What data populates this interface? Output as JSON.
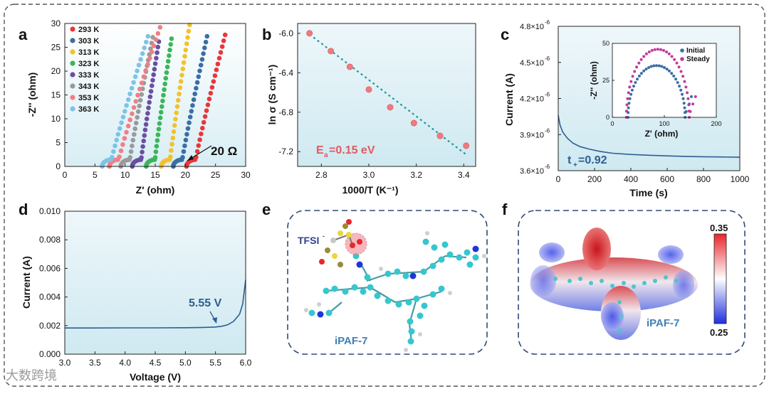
{
  "figure": {
    "panel_letters": [
      "a",
      "b",
      "c",
      "d",
      "e",
      "f"
    ],
    "watermark": "大数跨境"
  },
  "chart_data": [
    {
      "panel": "a",
      "type": "scatter",
      "xlabel": "Z' (ohm)",
      "ylabel": "-Z'' (ohm)",
      "xlim": [
        0,
        30
      ],
      "ylim": [
        0,
        30
      ],
      "xticks": [
        "0",
        "5",
        "10",
        "15",
        "20",
        "25",
        "30"
      ],
      "yticks": [
        "0",
        "5",
        "10",
        "15",
        "20",
        "25",
        "30"
      ],
      "annotation": "20 Ω",
      "series": [
        {
          "name": "293 K",
          "color": "#e8373b",
          "r": 20.2,
          "top": 27.6,
          "xtop": 26.6
        },
        {
          "name": "303 K",
          "color": "#3a6ea5",
          "r": 18.0,
          "top": 27.3,
          "xtop": 23.6
        },
        {
          "name": "313 K",
          "color": "#f2c12e",
          "r": 16.0,
          "top": 29.7,
          "xtop": 20.7
        },
        {
          "name": "323 K",
          "color": "#3cb55a",
          "r": 13.5,
          "top": 26.8,
          "xtop": 17.7
        },
        {
          "name": "333 K",
          "color": "#6b4fa0",
          "r": 11.2,
          "top": 26.2,
          "xtop": 15.6
        },
        {
          "name": "343 K",
          "color": "#9a9a9a",
          "r": 9.3,
          "top": 27.1,
          "xtop": 14.6
        },
        {
          "name": "353 K",
          "color": "#f07f86",
          "r": 7.4,
          "top": 29.2,
          "xtop": 15.8
        },
        {
          "name": "363 K",
          "color": "#7ec3e6",
          "r": 6.2,
          "top": 27.3,
          "xtop": 13.8
        }
      ]
    },
    {
      "panel": "b",
      "type": "scatter",
      "xlabel": "1000/T (K⁻¹)",
      "ylabel": "ln σ (S cm⁻¹)",
      "xlim": [
        2.7,
        3.45
      ],
      "ylim": [
        -7.35,
        -5.9
      ],
      "xticks": [
        "2.8",
        "3.0",
        "3.2",
        "3.4"
      ],
      "yticks": [
        "-6.0",
        "-6.4",
        "-6.8",
        "-7.2"
      ],
      "x": [
        2.75,
        2.84,
        2.92,
        3.0,
        3.09,
        3.19,
        3.3,
        3.41
      ],
      "y": [
        -6.0,
        -6.18,
        -6.34,
        -6.57,
        -6.75,
        -6.91,
        -7.04,
        -7.14
      ],
      "fit": {
        "x": [
          2.75,
          3.41
        ],
        "y": [
          -6.01,
          -7.23
        ]
      },
      "annotation": "Ea=0.15 eV",
      "annotation_main": "E",
      "annotation_sub": "a",
      "annotation_rest": "=0.15 eV"
    },
    {
      "panel": "c",
      "type": "line",
      "xlabel": "Time (s)",
      "ylabel": "Current (A)",
      "xlim": [
        0,
        1000
      ],
      "ylim": [
        3.6,
        4.8
      ],
      "xticks": [
        "0",
        "200",
        "400",
        "600",
        "800",
        "1000"
      ],
      "yticks": [
        {
          "v": 3.6,
          "base": "3.6×10",
          "exp": "-6"
        },
        {
          "v": 3.9,
          "base": "3.9×10",
          "exp": "-6"
        },
        {
          "v": 4.2,
          "base": "4.2×10",
          "exp": "-6"
        },
        {
          "v": 4.5,
          "base": "4.5×10",
          "exp": "-6"
        },
        {
          "v": 4.8,
          "base": "4.8×10",
          "exp": "-6"
        }
      ],
      "x": [
        0,
        10,
        25,
        50,
        80,
        120,
        170,
        230,
        300,
        400,
        500,
        600,
        700,
        800,
        900,
        1000
      ],
      "y": [
        4.06,
        3.98,
        3.92,
        3.87,
        3.83,
        3.8,
        3.78,
        3.76,
        3.745,
        3.735,
        3.728,
        3.723,
        3.719,
        3.716,
        3.714,
        3.712
      ],
      "annotation": "t+=0.92",
      "annotation_main": "t",
      "annotation_sub": "+",
      "annotation_rest": "=0.92",
      "inset": {
        "type": "scatter",
        "xlabel": "Z' (ohm)",
        "ylabel": "-Z'' (ohm)",
        "xlim": [
          0,
          200
        ],
        "ylim": [
          0,
          50
        ],
        "xticks": [
          "0",
          "100",
          "200"
        ],
        "yticks": [
          "0",
          "25",
          "50"
        ],
        "series": [
          {
            "name": "Initial",
            "color": "#3a6ea5",
            "x0": 30,
            "x1": 140,
            "peak": 35,
            "tail": [
              [
                142,
                4
              ],
              [
                148,
                9
              ],
              [
                152,
                14
              ]
            ]
          },
          {
            "name": "Steady",
            "color": "#c23a9c",
            "x0": 27,
            "x1": 148,
            "peak": 46,
            "tail": [
              [
                150,
                4
              ],
              [
                155,
                9
              ],
              [
                160,
                14
              ]
            ]
          }
        ]
      }
    },
    {
      "panel": "d",
      "type": "line",
      "xlabel": "Voltage (V)",
      "ylabel": "Current (A)",
      "xlim": [
        3.0,
        6.0
      ],
      "ylim": [
        0,
        0.01
      ],
      "xticks": [
        "3.0",
        "3.5",
        "4.0",
        "4.5",
        "5.0",
        "5.5",
        "6.0"
      ],
      "yticks": [
        "0.000",
        "0.002",
        "0.004",
        "0.006",
        "0.008",
        "0.010"
      ],
      "x": [
        3.0,
        3.5,
        4.0,
        4.5,
        5.0,
        5.3,
        5.5,
        5.6,
        5.7,
        5.8,
        5.9,
        5.95,
        6.0
      ],
      "y": [
        0.00183,
        0.00183,
        0.00184,
        0.00184,
        0.00185,
        0.00187,
        0.0019,
        0.00195,
        0.00205,
        0.0023,
        0.0028,
        0.0035,
        0.0052
      ],
      "annotation": "5.55 V"
    },
    {
      "panel": "e",
      "type": "diagram",
      "labels": [
        "TFSI-",
        "iPAF-7"
      ],
      "label_main": "TFSI",
      "label_sup": "-",
      "label_name": "iPAF-7"
    },
    {
      "panel": "f",
      "type": "heatmap",
      "label_name": "iPAF-7",
      "scale_max": "0.35",
      "scale_min": "0.25"
    }
  ]
}
